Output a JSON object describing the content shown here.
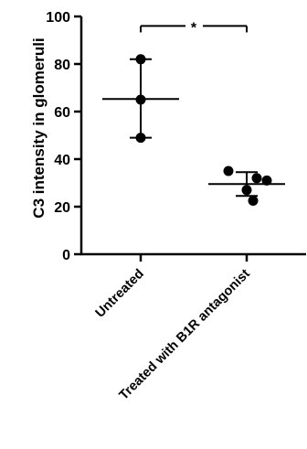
{
  "chart_data": {
    "type": "scatter",
    "ylabel": "C3 intensity in glomeruli",
    "ylim": [
      0,
      100
    ],
    "yticks": [
      0,
      20,
      40,
      60,
      80,
      100
    ],
    "categories": [
      "Untreated",
      "Treated with B1R antagonist"
    ],
    "groups": [
      {
        "category": "Untreated",
        "points": [
          82,
          65,
          49
        ],
        "mean": 65.3,
        "error_low": 49,
        "error_high": 82
      },
      {
        "category": "Treated with B1R antagonist",
        "points": [
          35,
          32,
          31,
          27,
          22.5
        ],
        "mean": 29.5,
        "error_low": 24.5,
        "error_high": 34.5
      }
    ],
    "annotation": {
      "text": "*",
      "between": [
        "Untreated",
        "Treated with B1R antagonist"
      ],
      "y": 96
    },
    "grid": false,
    "legend": "none"
  }
}
